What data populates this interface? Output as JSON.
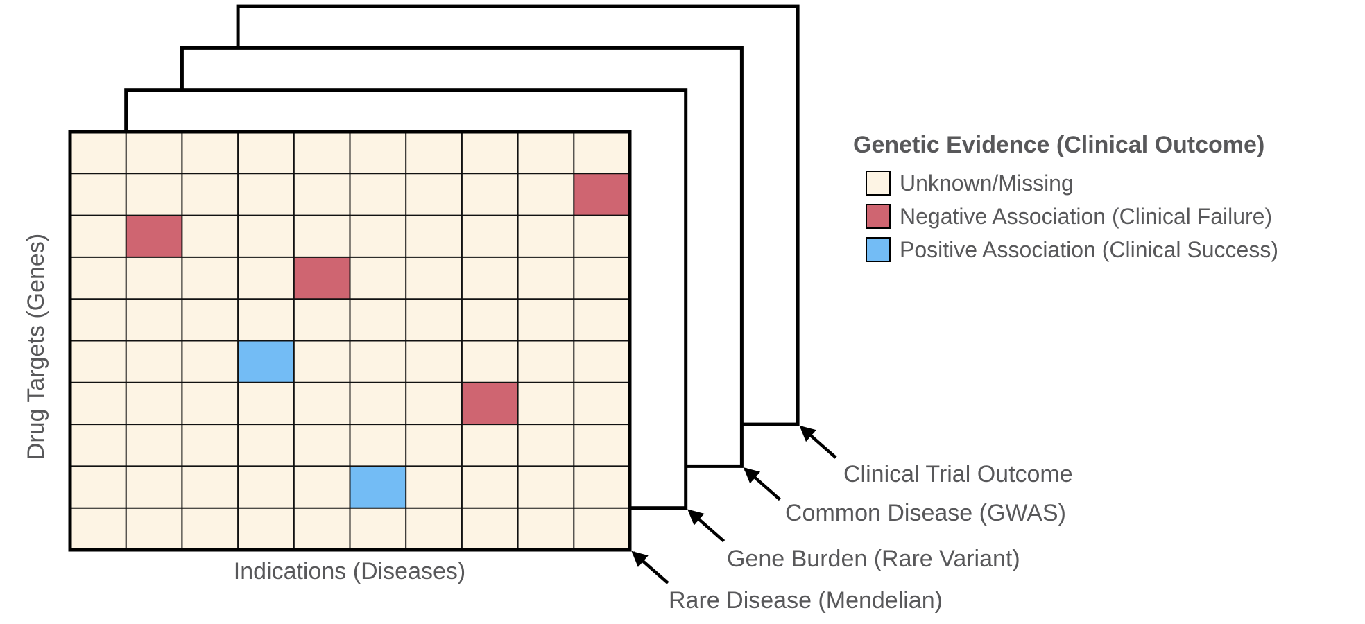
{
  "axes": {
    "x_label": "Indications (Diseases)",
    "y_label": "Drug Targets (Genes)"
  },
  "legend": {
    "title": "Genetic Evidence (Clinical Outcome)",
    "items": [
      {
        "label": "Unknown/Missing",
        "key": "unknown",
        "color": "#FDF4E4"
      },
      {
        "label": "Negative Association (Clinical Failure)",
        "key": "negative",
        "color": "#CF6571"
      },
      {
        "label": "Positive Association (Clinical Success)",
        "key": "positive",
        "color": "#73BCF5"
      }
    ]
  },
  "layers": [
    {
      "label": "Rare Disease (Mendelian)"
    },
    {
      "label": "Gene Burden (Rare Variant)"
    },
    {
      "label": "Common Disease (GWAS)"
    },
    {
      "label": "Clinical Trial Outcome"
    }
  ],
  "chart_data": {
    "type": "heatmap",
    "title": "",
    "rows": 10,
    "cols": 10,
    "xlabel": "Indications (Diseases)",
    "ylabel": "Drug Targets (Genes)",
    "stack_order": "front-to-back",
    "stack_layers": [
      "Rare Disease (Mendelian)",
      "Gene Burden (Rare Variant)",
      "Common Disease (GWAS)",
      "Clinical Trial Outcome"
    ],
    "default_state": "unknown",
    "state_colors": {
      "unknown": "#FDF4E4",
      "negative": "#CF6571",
      "positive": "#73BCF5"
    },
    "cells": [
      {
        "row": 2,
        "col": 10,
        "state": "negative"
      },
      {
        "row": 3,
        "col": 2,
        "state": "negative"
      },
      {
        "row": 4,
        "col": 5,
        "state": "negative"
      },
      {
        "row": 6,
        "col": 4,
        "state": "positive"
      },
      {
        "row": 7,
        "col": 8,
        "state": "negative"
      },
      {
        "row": 9,
        "col": 6,
        "state": "positive"
      }
    ],
    "legend_position": "top-right",
    "grid": true
  }
}
